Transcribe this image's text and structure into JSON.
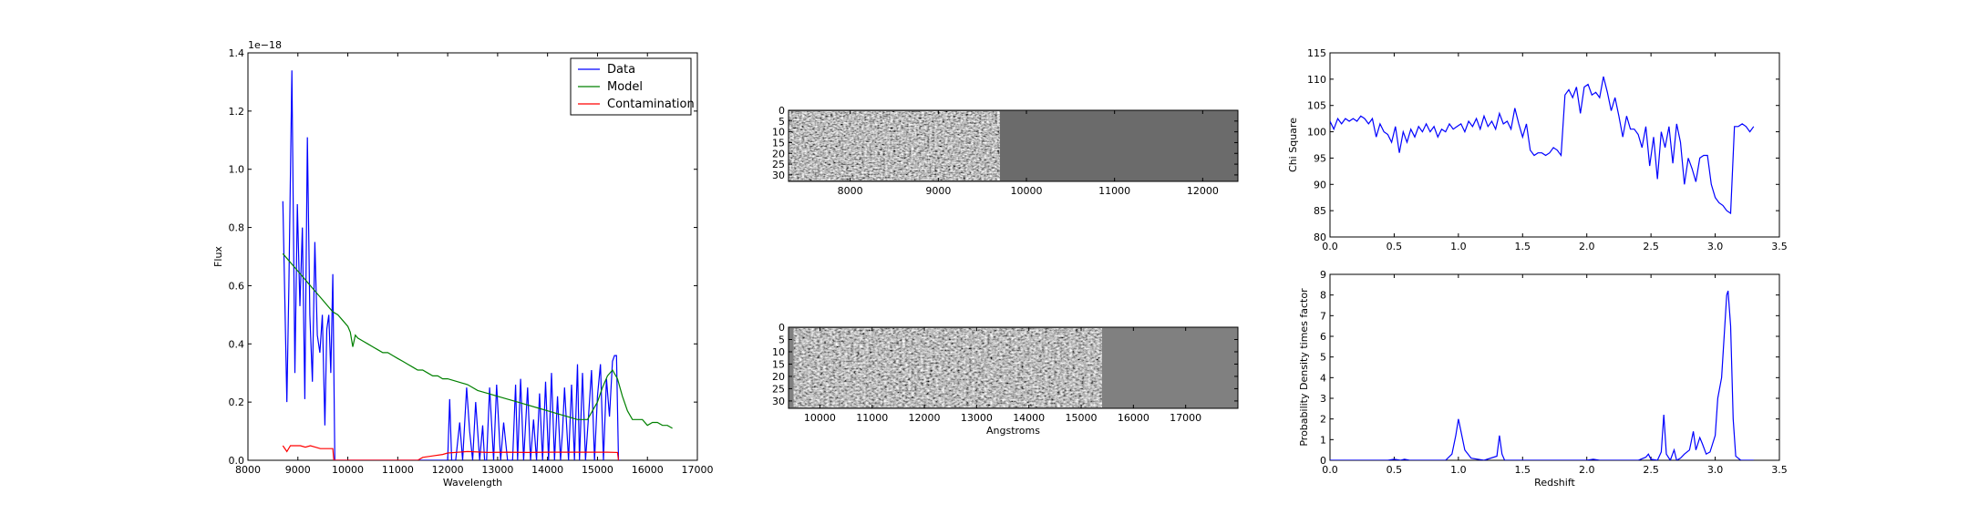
{
  "chart_data": [
    {
      "type": "line",
      "id": "spectrum",
      "xlabel": "Wavelength",
      "ylabel": "Flux",
      "offset_label": "1e−18",
      "xlim": [
        8000,
        17000
      ],
      "ylim": [
        0,
        1.4
      ],
      "xticks": [
        8000,
        9000,
        10000,
        11000,
        12000,
        13000,
        14000,
        15000,
        16000,
        17000
      ],
      "yticks": [
        0.0,
        0.2,
        0.4,
        0.6,
        0.8,
        1.0,
        1.2,
        1.4
      ],
      "ytick_labels": [
        "0.0",
        "0.2",
        "0.4",
        "0.6",
        "0.8",
        "1.0",
        "1.2",
        "1.4"
      ],
      "legend_position": "top-right",
      "series": [
        {
          "name": "Data",
          "color": "#0000ff",
          "x": [
            8700,
            8780,
            8820,
            8880,
            8940,
            8990,
            9040,
            9090,
            9140,
            9190,
            9240,
            9290,
            9340,
            9390,
            9440,
            9490,
            9540,
            9580,
            9620,
            9660,
            9700,
            9740,
            9760,
            9800,
            10500,
            11500,
            12000,
            12040,
            12080,
            12160,
            12240,
            12300,
            12380,
            12440,
            12500,
            12560,
            12640,
            12700,
            12740,
            12780,
            12840,
            12920,
            12980,
            13060,
            13120,
            13200,
            13300,
            13360,
            13400,
            13460,
            13520,
            13600,
            13660,
            13720,
            13780,
            13840,
            13900,
            13960,
            14020,
            14080,
            14140,
            14200,
            14260,
            14300,
            14340,
            14420,
            14480,
            14540,
            14600,
            14640,
            14700,
            14760,
            14820,
            14880,
            14940,
            15000,
            15060,
            15120,
            15180,
            15240,
            15300,
            15340,
            15380,
            15420,
            15460
          ],
          "y": [
            0.89,
            0.2,
            0.6,
            1.34,
            0.3,
            0.88,
            0.53,
            0.8,
            0.21,
            1.11,
            0.5,
            0.27,
            0.75,
            0.43,
            0.37,
            0.5,
            0.12,
            0.45,
            0.5,
            0.3,
            0.64,
            0.0,
            0.0,
            0.0,
            0.0,
            0.0,
            0.0,
            0.21,
            0.0,
            0.0,
            0.13,
            0.0,
            0.25,
            0.1,
            0.0,
            0.2,
            0.0,
            0.12,
            0.0,
            0.0,
            0.25,
            0.0,
            0.26,
            0.0,
            0.13,
            0.0,
            0.0,
            0.26,
            0.0,
            0.28,
            0.0,
            0.25,
            0.0,
            0.14,
            0.0,
            0.23,
            0.0,
            0.27,
            0.0,
            0.3,
            0.0,
            0.22,
            0.0,
            0.1,
            0.25,
            0.0,
            0.26,
            0.0,
            0.33,
            0.0,
            0.3,
            0.0,
            0.15,
            0.31,
            0.0,
            0.22,
            0.33,
            0.0,
            0.28,
            0.15,
            0.34,
            0.36,
            0.36,
            0.0,
            0.0
          ]
        },
        {
          "name": "Model",
          "color": "#008000",
          "x": [
            8700,
            8800,
            8900,
            9000,
            9100,
            9200,
            9300,
            9400,
            9500,
            9600,
            9700,
            9800,
            9900,
            10000,
            10050,
            10100,
            10150,
            10200,
            10300,
            10400,
            10500,
            10600,
            10700,
            10800,
            10900,
            11000,
            11100,
            11200,
            11300,
            11400,
            11500,
            11600,
            11700,
            11800,
            11900,
            12000,
            12200,
            12400,
            12600,
            12800,
            13000,
            13200,
            13400,
            13600,
            13800,
            14000,
            14200,
            14400,
            14600,
            14800,
            15000,
            15100,
            15200,
            15300,
            15400,
            15500,
            15600,
            15700,
            15800,
            15900,
            16000,
            16100,
            16200,
            16300,
            16400,
            16500
          ],
          "y": [
            0.71,
            0.69,
            0.67,
            0.65,
            0.63,
            0.61,
            0.59,
            0.57,
            0.55,
            0.53,
            0.51,
            0.5,
            0.48,
            0.46,
            0.44,
            0.39,
            0.43,
            0.42,
            0.41,
            0.4,
            0.39,
            0.38,
            0.37,
            0.37,
            0.36,
            0.35,
            0.34,
            0.33,
            0.32,
            0.31,
            0.31,
            0.3,
            0.29,
            0.29,
            0.28,
            0.28,
            0.27,
            0.26,
            0.24,
            0.23,
            0.22,
            0.21,
            0.2,
            0.19,
            0.18,
            0.17,
            0.16,
            0.15,
            0.14,
            0.14,
            0.2,
            0.25,
            0.29,
            0.31,
            0.28,
            0.22,
            0.17,
            0.14,
            0.14,
            0.14,
            0.12,
            0.13,
            0.13,
            0.12,
            0.12,
            0.11
          ]
        },
        {
          "name": "Contamination",
          "color": "#ff0000",
          "x": [
            8700,
            8780,
            8850,
            8950,
            9050,
            9150,
            9250,
            9350,
            9450,
            9550,
            9650,
            9700,
            9720,
            9740,
            11000,
            11200,
            11400,
            11500,
            11700,
            11900,
            12000,
            12400,
            12800,
            13200,
            13600,
            14000,
            14400,
            14800,
            15200,
            15400,
            15420
          ],
          "y": [
            0.05,
            0.03,
            0.05,
            0.05,
            0.05,
            0.045,
            0.05,
            0.045,
            0.04,
            0.04,
            0.04,
            0.04,
            0.0,
            0.0,
            0.0,
            0.0,
            0.0,
            0.01,
            0.015,
            0.02,
            0.025,
            0.03,
            0.027,
            0.028,
            0.027,
            0.028,
            0.028,
            0.028,
            0.028,
            0.027,
            0.0
          ]
        }
      ]
    },
    {
      "type": "heatmap",
      "id": "image-top",
      "xlim": [
        7300,
        12400
      ],
      "ylim": [
        33,
        0
      ],
      "image_extent_x": [
        7300,
        9700
      ],
      "xticks": [
        8000,
        9000,
        10000,
        11000,
        12000
      ],
      "yticks": [
        0,
        5,
        10,
        15,
        20,
        25,
        30
      ],
      "background_color": "#6b6b6b"
    },
    {
      "type": "heatmap",
      "id": "image-bottom",
      "xlabel": "Angstroms",
      "xlim": [
        9400,
        18000
      ],
      "ylim": [
        33,
        0
      ],
      "image_extent_x": [
        9500,
        15400
      ],
      "xticks": [
        10000,
        11000,
        12000,
        13000,
        14000,
        15000,
        16000,
        17000
      ],
      "yticks": [
        0,
        5,
        10,
        15,
        20,
        25,
        30
      ],
      "background_color": "#808080"
    },
    {
      "type": "line",
      "id": "chi-square",
      "ylabel": "Chi Square",
      "xlim": [
        0,
        3.5
      ],
      "ylim": [
        80,
        115
      ],
      "xticks": [
        0.0,
        0.5,
        1.0,
        1.5,
        2.0,
        2.5,
        3.0,
        3.5
      ],
      "xtick_labels": [
        "0.0",
        "0.5",
        "1.0",
        "1.5",
        "2.0",
        "2.5",
        "3.0",
        "3.5"
      ],
      "yticks": [
        80,
        85,
        90,
        95,
        100,
        105,
        110,
        115
      ],
      "series": [
        {
          "color": "#0000ff",
          "x": [
            0.0,
            0.03,
            0.06,
            0.09,
            0.12,
            0.15,
            0.18,
            0.21,
            0.24,
            0.27,
            0.3,
            0.33,
            0.36,
            0.39,
            0.42,
            0.45,
            0.48,
            0.51,
            0.54,
            0.57,
            0.6,
            0.63,
            0.66,
            0.69,
            0.72,
            0.75,
            0.78,
            0.81,
            0.84,
            0.87,
            0.9,
            0.93,
            0.96,
            0.99,
            1.02,
            1.05,
            1.08,
            1.11,
            1.14,
            1.17,
            1.2,
            1.23,
            1.26,
            1.29,
            1.32,
            1.35,
            1.38,
            1.41,
            1.44,
            1.47,
            1.5,
            1.53,
            1.56,
            1.59,
            1.62,
            1.65,
            1.68,
            1.71,
            1.74,
            1.77,
            1.8,
            1.83,
            1.86,
            1.89,
            1.92,
            1.95,
            1.98,
            2.01,
            2.04,
            2.07,
            2.1,
            2.13,
            2.16,
            2.19,
            2.22,
            2.25,
            2.28,
            2.31,
            2.34,
            2.37,
            2.4,
            2.43,
            2.46,
            2.49,
            2.52,
            2.55,
            2.58,
            2.61,
            2.64,
            2.67,
            2.7,
            2.73,
            2.76,
            2.79,
            2.82,
            2.85,
            2.88,
            2.91,
            2.94,
            2.97,
            3.0,
            3.03,
            3.06,
            3.09,
            3.12,
            3.15,
            3.18,
            3.21,
            3.24,
            3.27,
            3.3
          ],
          "y": [
            102,
            100.5,
            102.5,
            101.5,
            102.5,
            102,
            102.5,
            102,
            103,
            102.5,
            101.5,
            102.5,
            99,
            101.5,
            100,
            99.5,
            98,
            101,
            96,
            100,
            98,
            100.5,
            99,
            101,
            100,
            101.5,
            100,
            101,
            99,
            100.5,
            100,
            101.5,
            100.5,
            101,
            101.5,
            100,
            102,
            101,
            102.5,
            100.5,
            103,
            101,
            102,
            100.5,
            103.5,
            101.5,
            102,
            100.5,
            104.5,
            101.5,
            99,
            101.5,
            96.5,
            95.5,
            96,
            96,
            95.5,
            96,
            97,
            96.5,
            95.5,
            107,
            108,
            106.5,
            108.5,
            103.5,
            108.5,
            109,
            107,
            107.5,
            106.5,
            110.5,
            107.5,
            104,
            106.5,
            103,
            99,
            103,
            100.5,
            100.5,
            99.5,
            97,
            101,
            93.5,
            99,
            91,
            100,
            97,
            101,
            94,
            101.5,
            98,
            90,
            95,
            93,
            90.5,
            95,
            95.5,
            95.5,
            90,
            87.5,
            86.5,
            86,
            85,
            84.5,
            101,
            101,
            101.5,
            101,
            100,
            101
          ]
        }
      ]
    },
    {
      "type": "line",
      "id": "probability",
      "xlabel": "Redshift",
      "ylabel": "Probability Density times factor",
      "xlim": [
        0,
        3.5
      ],
      "ylim": [
        0,
        9
      ],
      "xticks": [
        0.0,
        0.5,
        1.0,
        1.5,
        2.0,
        2.5,
        3.0,
        3.5
      ],
      "xtick_labels": [
        "0.0",
        "0.5",
        "1.0",
        "1.5",
        "2.0",
        "2.5",
        "3.0",
        "3.5"
      ],
      "yticks": [
        0,
        1,
        2,
        3,
        4,
        5,
        6,
        7,
        8,
        9
      ],
      "series": [
        {
          "color": "#0000ff",
          "x": [
            0.0,
            0.45,
            0.5,
            0.55,
            0.58,
            0.62,
            0.9,
            0.95,
            0.98,
            1.0,
            1.02,
            1.05,
            1.1,
            1.2,
            1.3,
            1.32,
            1.34,
            1.36,
            1.4,
            2.0,
            2.05,
            2.1,
            2.4,
            2.46,
            2.48,
            2.5,
            2.55,
            2.58,
            2.6,
            2.62,
            2.65,
            2.68,
            2.7,
            2.73,
            2.76,
            2.8,
            2.83,
            2.85,
            2.88,
            2.9,
            2.93,
            2.96,
            3.0,
            3.02,
            3.05,
            3.07,
            3.09,
            3.1,
            3.12,
            3.14,
            3.16,
            3.2,
            3.3
          ],
          "y": [
            0,
            0,
            0.05,
            0,
            0.05,
            0,
            0,
            0.3,
            1.2,
            2.0,
            1.4,
            0.5,
            0.1,
            0,
            0.2,
            1.2,
            0.3,
            0,
            0,
            0,
            0.05,
            0,
            0,
            0.15,
            0.3,
            0.05,
            0,
            0.4,
            2.2,
            0.3,
            0,
            0.5,
            0,
            0.1,
            0.3,
            0.5,
            1.4,
            0.5,
            1.1,
            0.8,
            0.3,
            0.4,
            1.2,
            3.0,
            4.0,
            6.0,
            8.0,
            8.2,
            6.5,
            2.0,
            0.2,
            0,
            0
          ]
        }
      ]
    }
  ]
}
